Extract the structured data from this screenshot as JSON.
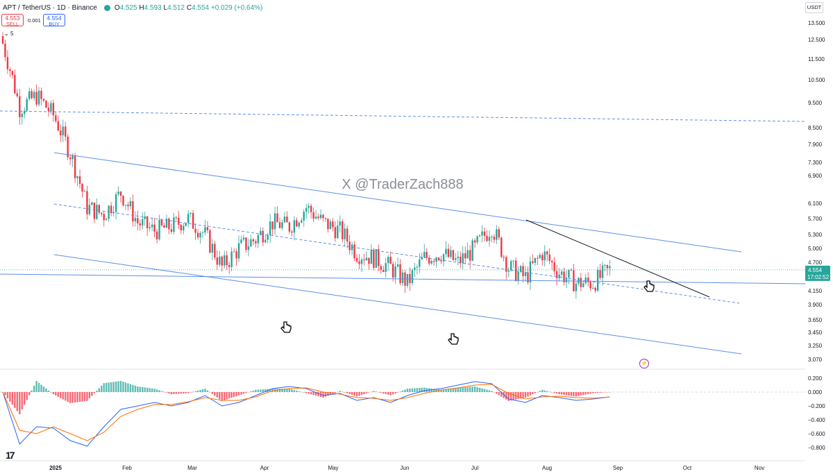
{
  "header": {
    "symbol": "APT / TetherUS · 1D · Binance",
    "open_label": "O",
    "open": "4.525",
    "high_label": "H",
    "high": "4.593",
    "low_label": "L",
    "low": "4.512",
    "close_label": "C",
    "close": "4.554",
    "change": "+0.029 (+0.64%)"
  },
  "trade": {
    "sell_price": "4.553",
    "sell_label": "SELL",
    "spread": "0.001",
    "buy_price": "4.554",
    "buy_label": "BUY"
  },
  "indicator_toggle": "5",
  "currency": "USDT",
  "watermark": "X @TraderZach888",
  "price_axis": [
    "13.500",
    "12.500",
    "11.500",
    "10.500",
    "9.500",
    "8.500",
    "7.900",
    "7.300",
    "6.900",
    "6.100",
    "5.700",
    "5.300",
    "5.000",
    "4.700",
    "4.150",
    "3.900",
    "3.650",
    "3.450",
    "3.250",
    "3.070"
  ],
  "last_price": "4.554",
  "countdown": "17:02:52",
  "macd_axis": [
    "0.200",
    "0.000",
    "−0.200",
    "−0.400",
    "−0.600",
    "−0.800"
  ],
  "time_axis": [
    "2025",
    "Feb",
    "Mar",
    "Apr",
    "May",
    "Jun",
    "Jul",
    "Aug",
    "Sep",
    "Oct",
    "Nov"
  ],
  "logo": "17",
  "colors": {
    "up": "#26a69a",
    "down": "#f23645",
    "channel": "#5b8ee6",
    "macd": "#2962ff",
    "signal": "#ff6d00",
    "alert": "#9c27b0"
  },
  "chart_data": {
    "type": "candlestick",
    "symbol": "APT/USDT",
    "interval": "1D",
    "x": [
      "2025-01-01",
      "2025-01-06",
      "2025-01-13",
      "2025-01-20",
      "2025-01-27",
      "2025-02-03",
      "2025-02-10",
      "2025-02-17",
      "2025-02-24",
      "2025-03-03",
      "2025-03-10",
      "2025-03-17",
      "2025-03-24",
      "2025-03-31",
      "2025-04-07",
      "2025-04-14",
      "2025-04-21",
      "2025-04-28",
      "2025-05-05",
      "2025-05-12",
      "2025-05-19",
      "2025-05-26",
      "2025-06-02",
      "2025-06-09",
      "2025-06-16",
      "2025-06-23",
      "2025-06-30",
      "2025-07-07",
      "2025-07-14",
      "2025-07-21",
      "2025-07-28",
      "2025-08-04",
      "2025-08-11",
      "2025-08-18",
      "2025-08-25",
      "2025-09-01",
      "2025-09-08"
    ],
    "close": [
      12.3,
      9.3,
      9.8,
      9.0,
      7.6,
      6.0,
      5.8,
      6.4,
      5.6,
      5.4,
      5.5,
      5.7,
      5.3,
      4.6,
      5.0,
      5.2,
      5.6,
      5.5,
      6.0,
      5.6,
      5.4,
      4.9,
      4.8,
      4.6,
      4.3,
      4.8,
      4.9,
      4.7,
      5.0,
      5.5,
      4.6,
      4.4,
      4.9,
      4.5,
      4.3,
      4.3,
      4.55
    ],
    "ylim": [
      3.0,
      13.5
    ],
    "macd": {
      "series": [
        {
          "name": "MACD",
          "values": [
            0.0,
            -0.75,
            -0.5,
            -0.52,
            -0.7,
            -0.78,
            -0.5,
            -0.25,
            -0.2,
            -0.15,
            -0.2,
            -0.15,
            -0.05,
            -0.2,
            -0.15,
            -0.05,
            0.05,
            0.08,
            0.05,
            -0.05,
            -0.02,
            -0.12,
            -0.08,
            -0.15,
            -0.05,
            0.02,
            0.05,
            0.1,
            0.15,
            0.12,
            -0.1,
            -0.15,
            -0.05,
            -0.08,
            -0.12,
            -0.1,
            -0.07
          ]
        },
        {
          "name": "Signal",
          "values": [
            0.0,
            -0.55,
            -0.6,
            -0.5,
            -0.6,
            -0.7,
            -0.58,
            -0.35,
            -0.25,
            -0.18,
            -0.18,
            -0.14,
            -0.08,
            -0.12,
            -0.12,
            -0.07,
            0.02,
            0.05,
            0.06,
            0.0,
            -0.03,
            -0.08,
            -0.09,
            -0.12,
            -0.08,
            -0.02,
            0.03,
            0.06,
            0.1,
            0.11,
            -0.02,
            -0.1,
            -0.07,
            -0.06,
            -0.08,
            -0.09,
            -0.07
          ]
        }
      ],
      "ylim": [
        -0.9,
        0.25
      ]
    }
  }
}
